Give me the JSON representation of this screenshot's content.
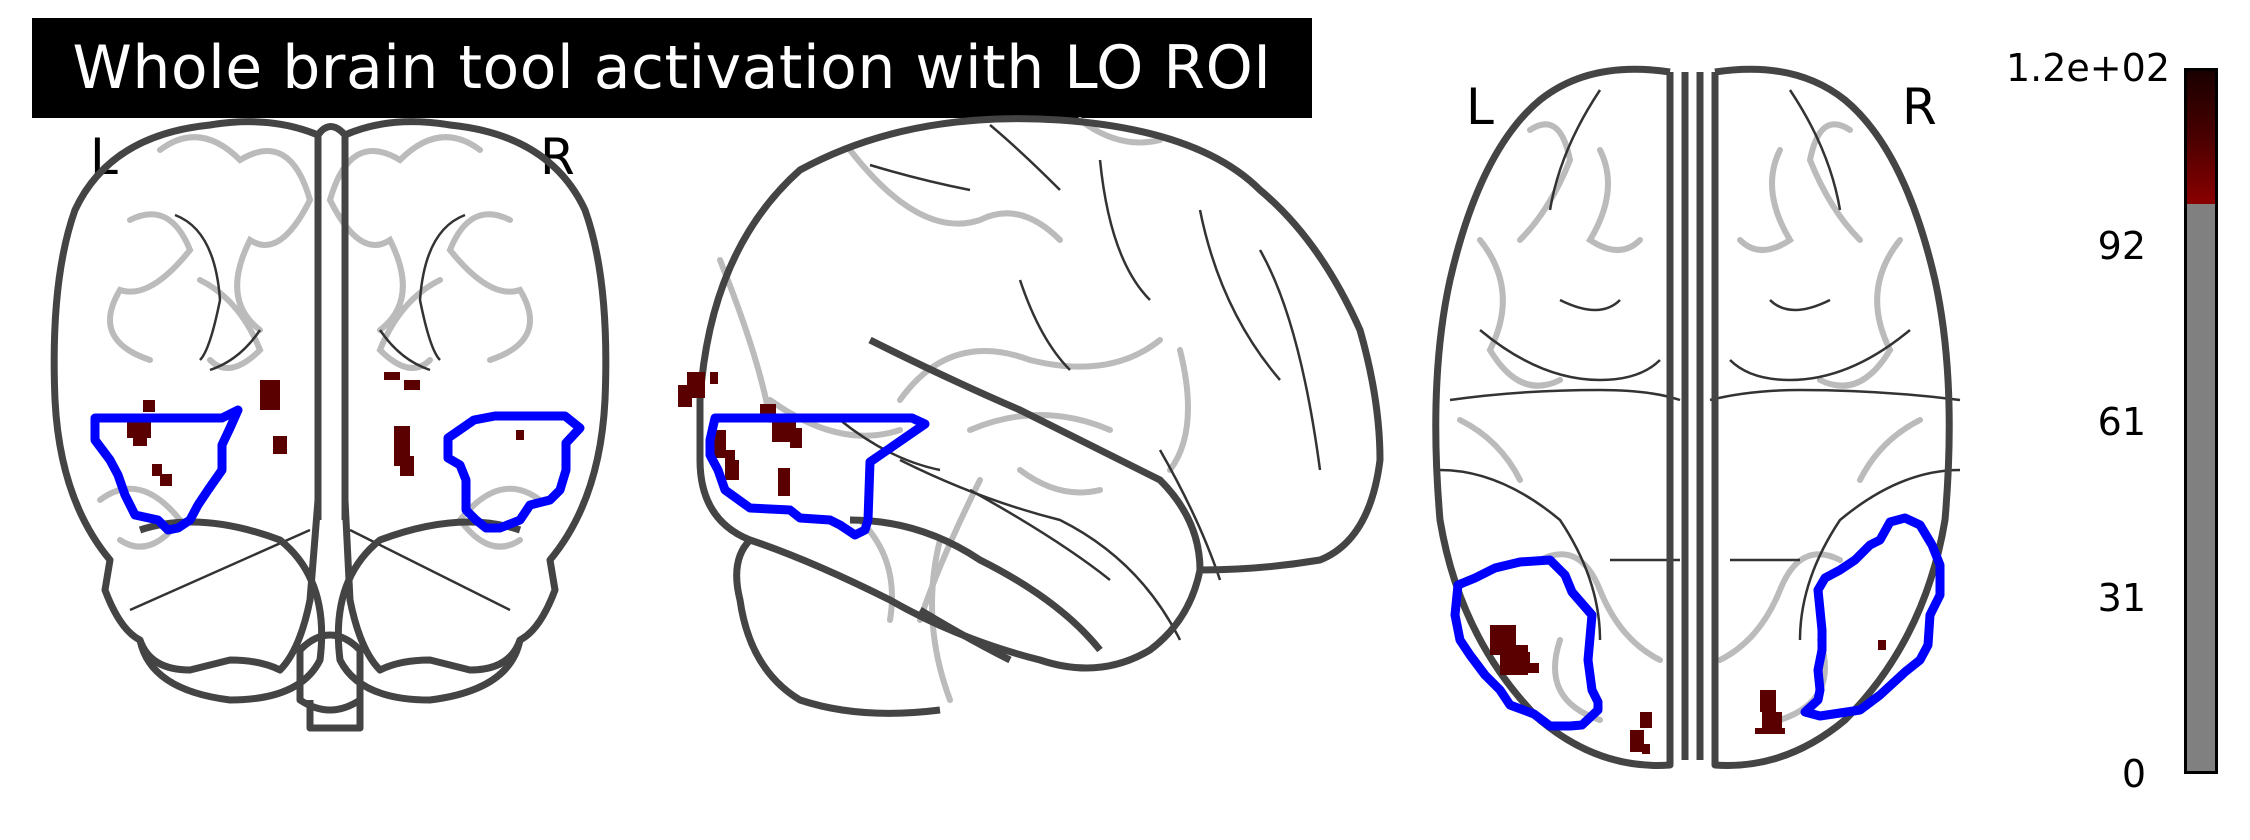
{
  "title": "Whole brain tool activation with LO ROI",
  "orientation": {
    "coronal_left": "L",
    "coronal_right": "R",
    "axial_left": "L",
    "axial_right": "R"
  },
  "colors": {
    "activation": "#5a0000",
    "roi_outline": "#0000ff",
    "brain_outline": "#444444",
    "brain_gyri": "#bbbbbb",
    "colorbar_gray": "#808080"
  },
  "colorbar": {
    "ticks": [
      "1.2e+02",
      "92",
      "61",
      "31",
      "0"
    ],
    "threshold_fraction": 0.81
  }
}
